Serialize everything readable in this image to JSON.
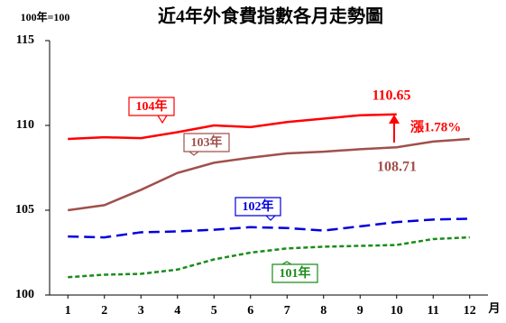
{
  "chart_data": {
    "type": "line",
    "title": "近4年外食費指數各月走勢圖",
    "y_label": "100年=100",
    "x_label": "月",
    "x": [
      1,
      2,
      3,
      4,
      5,
      6,
      7,
      8,
      9,
      10,
      11,
      12
    ],
    "xlim": [
      0.5,
      12.5
    ],
    "xticks": [
      1,
      2,
      3,
      4,
      5,
      6,
      7,
      8,
      9,
      10,
      11,
      12
    ],
    "ylim": [
      100,
      115
    ],
    "yticks": [
      100,
      105,
      110,
      115
    ],
    "grid": false,
    "series": [
      {
        "name": "104年",
        "color": "#ff0000",
        "dash": false,
        "values": [
          109.2,
          109.3,
          109.25,
          109.6,
          110.0,
          109.9,
          110.2,
          110.4,
          110.6,
          110.65,
          null,
          null
        ]
      },
      {
        "name": "103年",
        "color": "#a0504b",
        "dash": false,
        "values": [
          105.0,
          105.3,
          106.2,
          107.2,
          107.8,
          108.1,
          108.35,
          108.45,
          108.6,
          108.71,
          109.05,
          109.2
        ]
      },
      {
        "name": "102年",
        "color": "#0000e0",
        "dash": true,
        "values": [
          103.45,
          103.4,
          103.7,
          103.75,
          103.85,
          104.0,
          103.95,
          103.8,
          104.05,
          104.3,
          104.45,
          104.5
        ]
      },
      {
        "name": "101年",
        "color": "#1a8c1a",
        "dash": true,
        "values": [
          101.05,
          101.2,
          101.25,
          101.5,
          102.1,
          102.5,
          102.75,
          102.85,
          102.9,
          102.95,
          103.3,
          103.4
        ]
      }
    ],
    "annotations": [
      "漲1.78%"
    ]
  }
}
